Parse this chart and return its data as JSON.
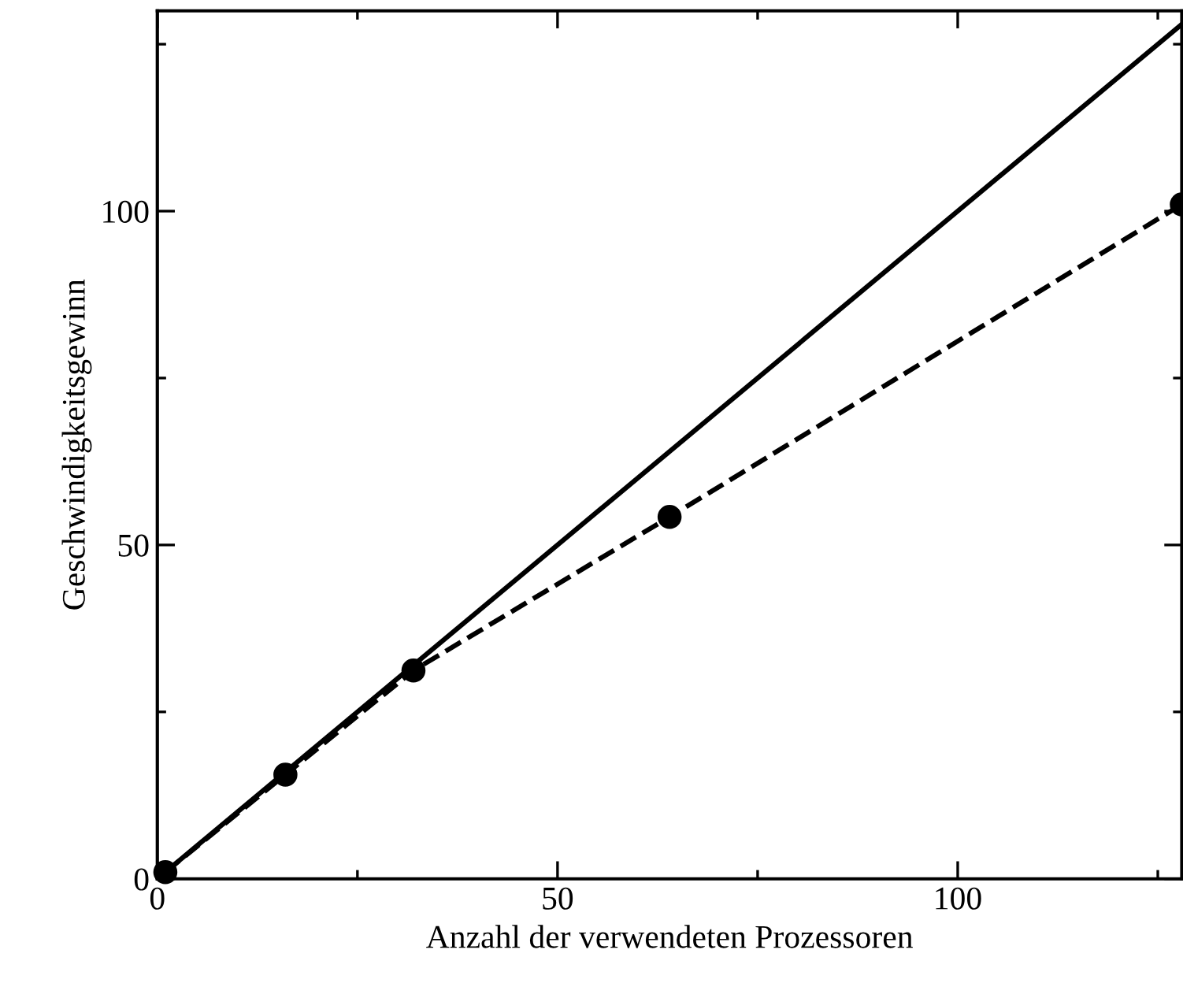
{
  "chart_data": {
    "type": "line",
    "xlabel": "Anzahl der verwendeten Prozessoren",
    "ylabel": "Geschwindigkeitsgewinn",
    "xlim": [
      0,
      128
    ],
    "ylim": [
      0,
      130
    ],
    "xticks": [
      0,
      50,
      100
    ],
    "yticks": [
      0,
      50,
      100
    ],
    "grid": false,
    "legend": false,
    "series": [
      {
        "color": "#000000",
        "x": [
          1,
          128
        ],
        "values": [
          1,
          128
        ],
        "line_style": "solid"
      },
      {
        "color": "#000000",
        "x": [
          1,
          16,
          32,
          64,
          128
        ],
        "values": [
          1,
          15.6,
          31.2,
          54.2,
          101
        ],
        "line_style": "dashed",
        "marker": "circle"
      }
    ]
  }
}
